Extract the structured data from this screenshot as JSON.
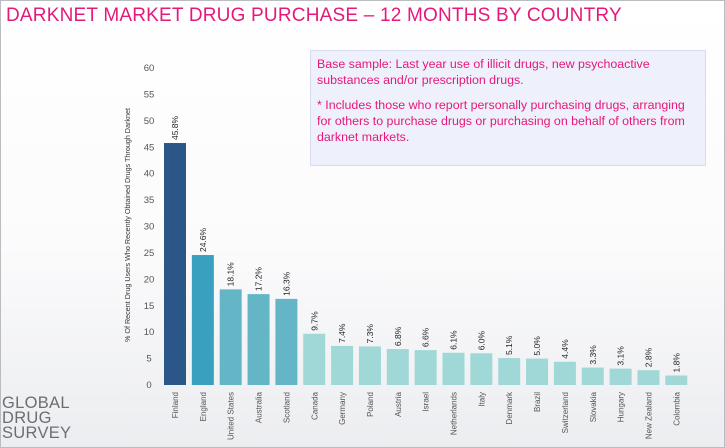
{
  "title": "DARKNET MARKET DRUG PURCHASE – 12 MONTHS BY COUNTRY",
  "note": {
    "line1": "Base sample: Last year use of  illicit drugs, new psychoactive substances and/or prescription drugs.",
    "line2": "* Includes those who report personally purchasing drugs, arranging for others to purchase drugs or purchasing on behalf of others from darknet markets."
  },
  "logo": {
    "line1": "GLOBAL",
    "line2": "DRUG",
    "line3": "SURVEY"
  },
  "chart_data": {
    "type": "bar",
    "ylabel": "% Of Recent Drug Users Who Recently Obtained Drugs Through Darknet",
    "ylim": [
      0,
      60
    ],
    "yticks": [
      0,
      5,
      10,
      15,
      20,
      25,
      30,
      35,
      40,
      45,
      50,
      55,
      60
    ],
    "categories": [
      "Finland",
      "England",
      "United States",
      "Australia",
      "Scotland",
      "Canada",
      "Germany",
      "Poland",
      "Austria",
      "Israel",
      "Netherlands",
      "Italy",
      "Denmark",
      "Brazil",
      "Switzerland",
      "Slovakia",
      "Hungary",
      "New Zealand",
      "Colombia"
    ],
    "values": [
      45.8,
      24.6,
      18.1,
      17.2,
      16.3,
      9.7,
      7.4,
      7.3,
      6.8,
      6.6,
      6.1,
      6.0,
      5.1,
      5.0,
      4.4,
      3.3,
      3.1,
      2.8,
      1.8
    ],
    "labels": [
      "45.8%",
      "24.6%",
      "18.1%",
      "17.2%",
      "16.3%",
      "9.7%",
      "7.4%",
      "7.3%",
      "6.8%",
      "6.6%",
      "6.1%",
      "6.0%",
      "5.1%",
      "5.0%",
      "4.4%",
      "3.3%",
      "3.1%",
      "2.8%",
      "1.8%"
    ],
    "colors": [
      "#2a5688",
      "#3aa0bf",
      "#64b6c7",
      "#64b6c7",
      "#64b6c7",
      "#9fd8d7",
      "#9fd8d7",
      "#9fd8d7",
      "#9fd8d7",
      "#9fd8d7",
      "#9fd8d7",
      "#9fd8d7",
      "#9fd8d7",
      "#9fd8d7",
      "#9fd8d7",
      "#9fd8d7",
      "#9fd8d7",
      "#9fd8d7",
      "#9fd8d7"
    ],
    "grid": false,
    "legend": "none"
  }
}
